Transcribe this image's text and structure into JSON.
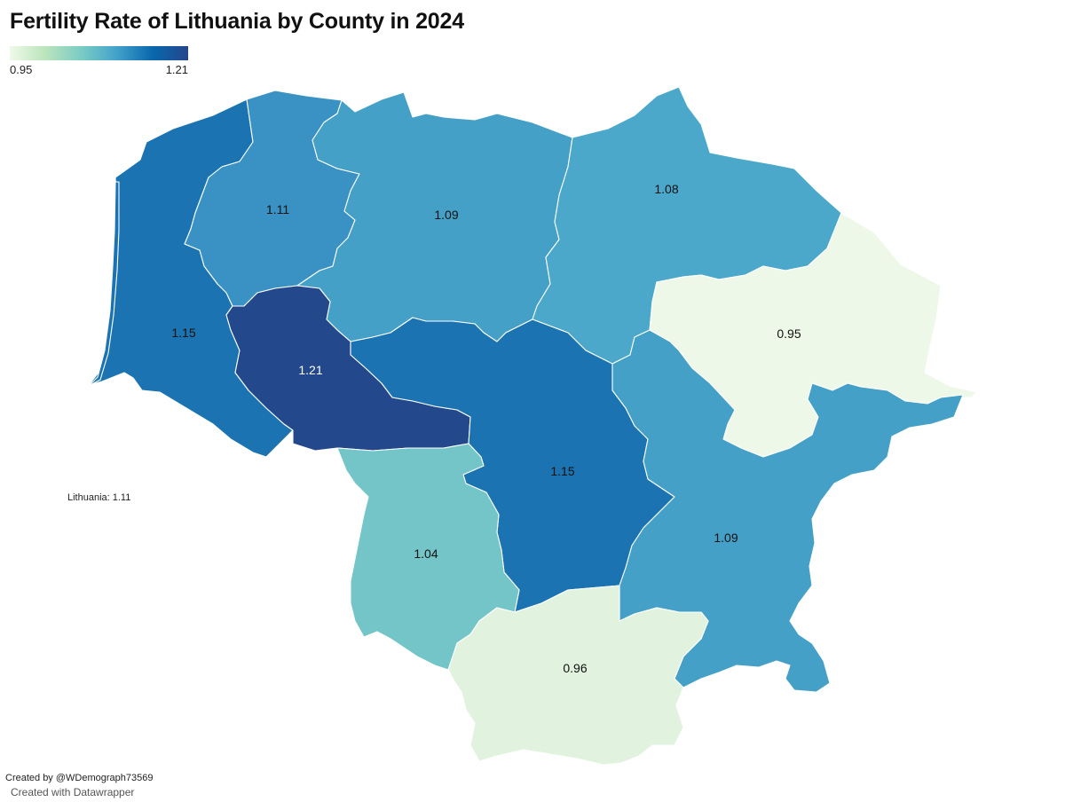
{
  "title": "Fertility Rate of Lithuania by County in 2024",
  "legend": {
    "min_label": "0.95",
    "max_label": "1.21",
    "colors": [
      "#f0f9e8",
      "#bae4bc",
      "#7bccc4",
      "#43a2ca",
      "#0868ac",
      "#24468c"
    ]
  },
  "counties": [
    {
      "id": "klaipeda",
      "label": "1.15",
      "color": "#1b74b1"
    },
    {
      "id": "telsiai",
      "label": "1.11",
      "color": "#3a92c4"
    },
    {
      "id": "siauliai",
      "label": "1.09",
      "color": "#45a0c7"
    },
    {
      "id": "panevezys",
      "label": "1.08",
      "color": "#4ba8ca"
    },
    {
      "id": "utena",
      "label": "0.95",
      "color": "#eef8e9"
    },
    {
      "id": "taurage",
      "label": "1.21",
      "color": "#24488c"
    },
    {
      "id": "kaunas",
      "label": "1.15",
      "color": "#1b74b1"
    },
    {
      "id": "marijampole",
      "label": "1.04",
      "color": "#73c5c7"
    },
    {
      "id": "vilnius",
      "label": "1.09",
      "color": "#45a0c7"
    },
    {
      "id": "alytus",
      "label": "0.96",
      "color": "#e1f3df"
    }
  ],
  "national_note": "Lithuania: 1.11",
  "credit": "Created by @WDemograph73569",
  "tool_credit": "Created with Datawrapper"
}
